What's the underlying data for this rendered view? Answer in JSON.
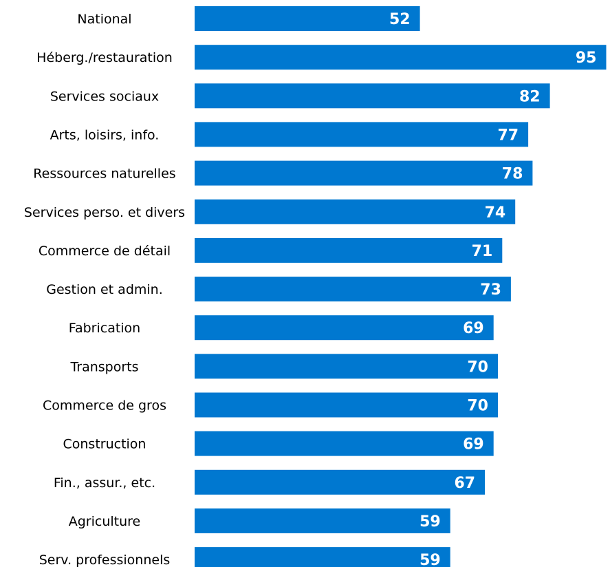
{
  "chart_data": {
    "type": "bar",
    "orientation": "horizontal",
    "categories": [
      "National",
      "Héberg./restauration",
      "Services sociaux",
      "Arts, loisirs, info.",
      "Ressources naturelles",
      "Services perso. et divers",
      "Commerce de détail",
      "Gestion et admin.",
      "Fabrication",
      "Transports",
      "Commerce de gros",
      "Construction",
      "Fin., assur., etc.",
      "Agriculture",
      "Serv. professionnels"
    ],
    "values": [
      52,
      95,
      82,
      77,
      78,
      74,
      71,
      73,
      69,
      70,
      70,
      69,
      67,
      59,
      59
    ],
    "data_labels": [
      "52",
      "95",
      "82",
      "77",
      "78",
      "74",
      "71",
      "73",
      "69",
      "70",
      "70",
      "69",
      "67",
      "59",
      "59"
    ],
    "title": "",
    "xlabel": "",
    "ylabel": "",
    "xlim": [
      0,
      95
    ],
    "grid": false,
    "legend": "none",
    "bar_color": "#0078d0",
    "label_color": "#ffffff"
  }
}
